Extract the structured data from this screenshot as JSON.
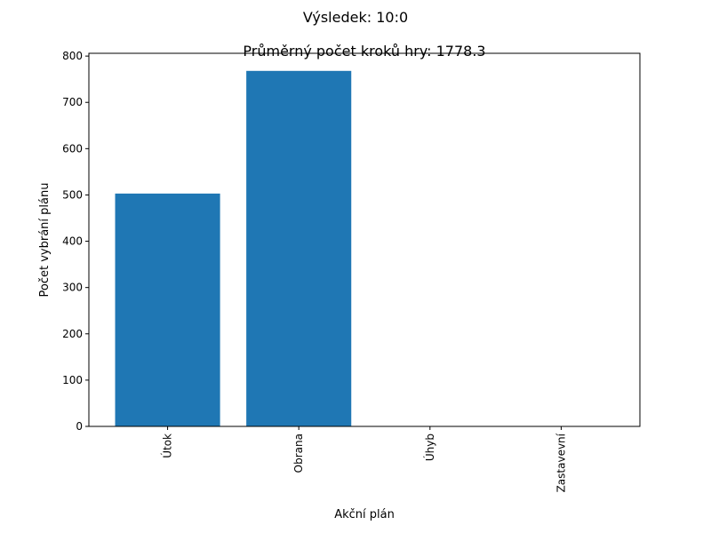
{
  "chart_data": {
    "type": "bar",
    "suptitle": "Výsledek: 10:0",
    "title": "Průměrný počet kroků hry: 1778.3",
    "xlabel": "Akční plán",
    "ylabel": "Počet vybrání plánu",
    "categories": [
      "Útok",
      "Obrana",
      "Úhyb",
      "Zastavevní"
    ],
    "values": [
      503,
      768,
      0,
      0
    ],
    "ylim": [
      0,
      806
    ],
    "yticks": [
      "0",
      "100",
      "200",
      "300",
      "400",
      "500",
      "600",
      "700",
      "800"
    ],
    "bar_color": "#1f77b4",
    "grid": false,
    "legend": "none"
  }
}
